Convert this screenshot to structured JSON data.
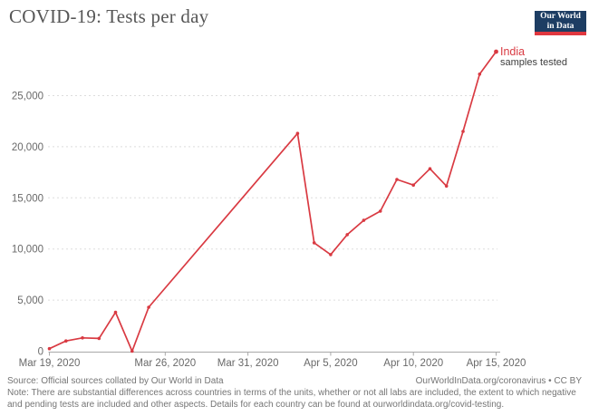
{
  "header": {
    "title": "COVID-19: Tests per day",
    "logo": {
      "line1": "Our World",
      "line2": "in Data"
    }
  },
  "legend": {
    "country": "India",
    "metric": "samples tested"
  },
  "footer": {
    "source": "Source: Official sources collated by Our World in Data",
    "link": "OurWorldInData.org/coronavirus • CC BY",
    "note_line1": "Note: There are substantial differences across countries in terms of the units, whether or not all labs are included, the extent to which negative",
    "note_line2": "and pending tests are included and other aspects. Details for each country can be found at ourworldindata.org/covid-testing."
  },
  "colors": {
    "line": "#d93a42",
    "grid": "#dddddd",
    "axis": "#a8a8a8",
    "tick_text": "#696969",
    "title_text": "#565656",
    "note_text": "#757575",
    "logo_bg": "#1d3d63",
    "logo_stripe": "#e0373f"
  },
  "chart_data": {
    "type": "line",
    "title": "COVID-19: Tests per day",
    "entity": "India",
    "metric": "samples tested",
    "xlabel": "",
    "ylabel": "",
    "ylim": [
      0,
      30000
    ],
    "y_ticks": [
      0,
      5000,
      10000,
      15000,
      20000,
      25000
    ],
    "x_ticks": [
      {
        "label": "Mar 19, 2020",
        "day": 0
      },
      {
        "label": "Mar 26, 2020",
        "day": 7
      },
      {
        "label": "Mar 31, 2020",
        "day": 12
      },
      {
        "label": "Apr 5, 2020",
        "day": 17
      },
      {
        "label": "Apr 10, 2020",
        "day": 22
      },
      {
        "label": "Apr 15, 2020",
        "day": 27
      }
    ],
    "grid": "horizontal-dashed",
    "legend_position": "line-end",
    "points": [
      {
        "date": "Mar 19, 2020",
        "day": 0,
        "value": 250
      },
      {
        "date": "Mar 20, 2020",
        "day": 1,
        "value": 1000
      },
      {
        "date": "Mar 21, 2020",
        "day": 2,
        "value": 1300
      },
      {
        "date": "Mar 22, 2020",
        "day": 3,
        "value": 1250
      },
      {
        "date": "Mar 23, 2020",
        "day": 4,
        "value": 3800
      },
      {
        "date": "Mar 24, 2020",
        "day": 5,
        "value": 0
      },
      {
        "date": "Mar 25, 2020",
        "day": 6,
        "value": 4300
      },
      {
        "date": "Apr 3, 2020",
        "day": 15,
        "value": 21300
      },
      {
        "date": "Apr 4, 2020",
        "day": 16,
        "value": 10600
      },
      {
        "date": "Apr 5, 2020",
        "day": 17,
        "value": 9450
      },
      {
        "date": "Apr 6, 2020",
        "day": 18,
        "value": 11400
      },
      {
        "date": "Apr 7, 2020",
        "day": 19,
        "value": 12800
      },
      {
        "date": "Apr 8, 2020",
        "day": 20,
        "value": 13700
      },
      {
        "date": "Apr 9, 2020",
        "day": 21,
        "value": 16800
      },
      {
        "date": "Apr 10, 2020",
        "day": 22,
        "value": 16250
      },
      {
        "date": "Apr 11, 2020",
        "day": 23,
        "value": 17850
      },
      {
        "date": "Apr 12, 2020",
        "day": 24,
        "value": 16150
      },
      {
        "date": "Apr 13, 2020",
        "day": 25,
        "value": 21500
      },
      {
        "date": "Apr 14, 2020",
        "day": 26,
        "value": 27100
      },
      {
        "date": "Apr 15, 2020",
        "day": 27,
        "value": 29300
      }
    ]
  }
}
